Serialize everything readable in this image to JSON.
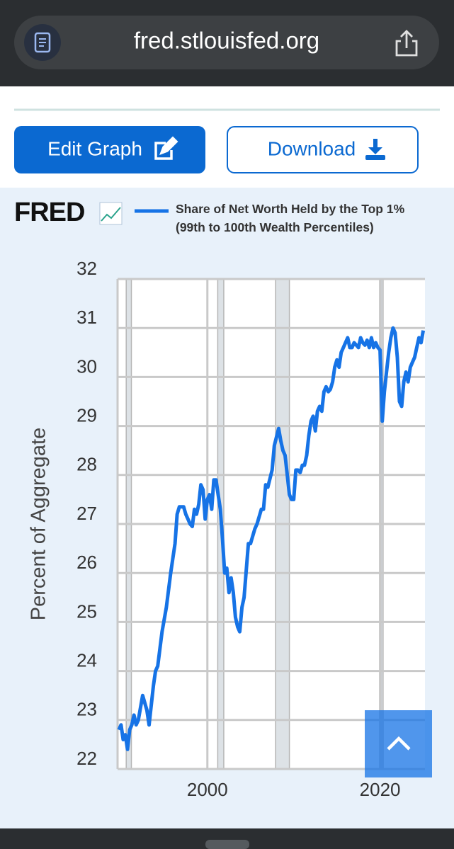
{
  "browser": {
    "url": "fred.stlouisfed.org"
  },
  "buttons": {
    "edit": "Edit Graph",
    "download": "Download"
  },
  "logo": "FRED",
  "chart_data": {
    "type": "line",
    "y_label": "Percent of Aggregate",
    "xlim": [
      1989.6,
      2025.2
    ],
    "ylim": [
      22,
      32
    ],
    "xticks": [
      2000,
      2020
    ],
    "yticks": [
      22,
      23,
      24,
      25,
      26,
      27,
      28,
      29,
      30,
      31,
      32
    ],
    "grid": true,
    "recessions": [
      [
        1990.6,
        1991.2
      ],
      [
        2001.2,
        2001.9
      ],
      [
        2007.9,
        2009.5
      ],
      [
        2020.1,
        2020.35
      ]
    ],
    "x": [
      1989.75,
      1990.0,
      1990.25,
      1990.5,
      1990.75,
      1991.0,
      1991.25,
      1991.5,
      1991.75,
      1992.0,
      1992.5,
      1993.0,
      1993.25,
      1993.75,
      1994.0,
      1994.25,
      1994.75,
      1995.25,
      1995.75,
      1996.25,
      1996.5,
      1996.75,
      1997.25,
      1997.5,
      1997.75,
      1998.0,
      1998.25,
      1998.5,
      1998.75,
      1999.0,
      1999.25,
      1999.5,
      1999.75,
      2000.0,
      2000.25,
      2000.5,
      2000.75,
      2001.0,
      2001.25,
      2001.5,
      2001.75,
      2002.0,
      2002.25,
      2002.5,
      2002.75,
      2003.0,
      2003.25,
      2003.5,
      2003.75,
      2004.0,
      2004.25,
      2004.75,
      2005.0,
      2005.5,
      2005.75,
      2006.25,
      2006.5,
      2006.75,
      2007.0,
      2007.5,
      2007.75,
      2008.25,
      2008.5,
      2008.75,
      2009.0,
      2009.25,
      2009.5,
      2009.75,
      2010.0,
      2010.25,
      2010.5,
      2010.75,
      2011.0,
      2011.25,
      2011.5,
      2011.75,
      2012.0,
      2012.25,
      2012.5,
      2012.75,
      2013.0,
      2013.25,
      2013.5,
      2013.75,
      2014.0,
      2014.25,
      2014.5,
      2014.75,
      2015.0,
      2015.25,
      2015.5,
      2015.75,
      2016.0,
      2016.25,
      2016.5,
      2016.75,
      2017.0,
      2017.25,
      2017.5,
      2017.75,
      2018.0,
      2018.25,
      2018.5,
      2018.75,
      2019.0,
      2019.25,
      2019.5,
      2019.75,
      2020.0,
      2020.25,
      2020.5,
      2020.75,
      2021.0,
      2021.25,
      2021.5,
      2021.75,
      2022.0,
      2022.25,
      2022.5,
      2022.75,
      2023.0,
      2023.25,
      2023.5,
      2023.75,
      2024.0,
      2024.25,
      2024.5,
      2024.75,
      2025.0
    ],
    "series": [
      {
        "name": "Share of Net Worth Held by the Top 1% (99th to 100th Wealth Percentiles)",
        "color": "#1673e6",
        "values": [
          22.8,
          22.9,
          22.6,
          22.7,
          22.4,
          22.8,
          22.9,
          23.1,
          22.9,
          23.0,
          23.5,
          23.2,
          22.9,
          23.7,
          24.0,
          24.1,
          24.8,
          25.3,
          26.0,
          26.6,
          27.2,
          27.35,
          27.35,
          27.2,
          27.1,
          27.0,
          26.95,
          27.3,
          27.2,
          27.4,
          27.8,
          27.7,
          27.1,
          27.5,
          27.6,
          27.3,
          27.9,
          27.9,
          27.6,
          27.3,
          26.7,
          26.0,
          26.1,
          25.6,
          25.9,
          25.6,
          25.1,
          24.9,
          24.8,
          25.3,
          25.5,
          26.6,
          26.6,
          26.9,
          27.0,
          27.3,
          27.3,
          27.8,
          27.75,
          28.1,
          28.6,
          28.95,
          28.7,
          28.5,
          28.4,
          28.0,
          27.6,
          27.5,
          27.5,
          28.1,
          28.1,
          28.05,
          28.2,
          28.2,
          28.4,
          28.8,
          29.1,
          29.2,
          28.9,
          29.3,
          29.4,
          29.3,
          29.7,
          29.8,
          29.7,
          29.75,
          29.9,
          30.2,
          30.35,
          30.2,
          30.5,
          30.6,
          30.7,
          30.8,
          30.6,
          30.6,
          30.7,
          30.65,
          30.6,
          30.8,
          30.7,
          30.65,
          30.75,
          30.6,
          30.8,
          30.6,
          30.7,
          30.6,
          30.55,
          29.1,
          29.7,
          30.1,
          30.5,
          30.8,
          31.0,
          30.9,
          30.4,
          29.5,
          29.4,
          29.9,
          30.1,
          29.9,
          30.2,
          30.3,
          30.4,
          30.6,
          30.8,
          30.7,
          30.95
        ]
      }
    ]
  }
}
